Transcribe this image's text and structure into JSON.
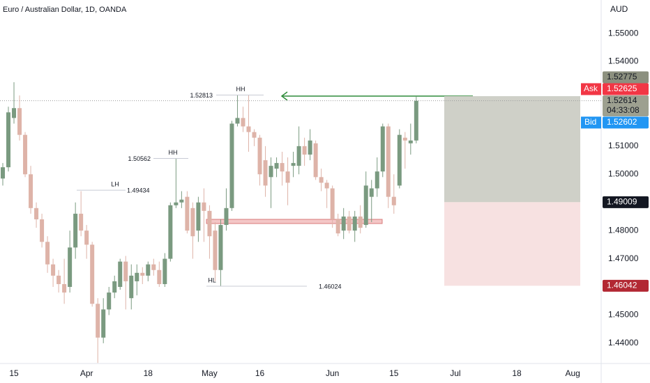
{
  "chart_data": {
    "type": "candlestick",
    "title": "Euro / Australian Dollar, 1D, OANDA",
    "currency": "AUD",
    "up_color": "#7a9a80",
    "down_color": "#deb3a8",
    "open": [
      1.4985,
      1.5025,
      1.52,
      1.5235,
      1.514,
      1.5,
      1.488,
      1.484,
      1.476,
      1.468,
      1.464,
      1.461,
      1.46,
      1.474,
      1.486,
      1.48,
      1.475,
      1.454,
      1.442,
      1.452,
      1.458,
      1.46,
      1.469,
      1.456,
      1.462,
      1.465,
      1.464,
      1.468,
      1.466,
      1.461,
      1.47,
      1.489,
      1.49,
      1.492,
      1.488,
      1.48,
      1.49,
      1.487,
      1.48,
      1.466,
      1.482,
      1.488,
      1.518,
      1.52,
      1.517,
      1.515,
      1.513,
      1.505,
      1.499,
      1.502,
      1.504,
      1.501,
      1.503,
      1.503,
      1.51,
      1.507,
      1.511,
      1.499,
      1.497,
      1.495,
      1.484,
      1.48,
      1.485,
      1.48,
      1.485,
      1.482,
      1.492,
      1.495,
      1.501,
      1.517,
      1.492,
      1.496,
      1.513,
      1.511,
      1.512
    ],
    "high": [
      1.504,
      1.524,
      1.5327,
      1.528,
      1.515,
      1.503,
      1.49,
      1.486,
      1.478,
      1.47,
      1.466,
      1.47,
      1.48,
      1.49,
      1.494,
      1.482,
      1.476,
      1.456,
      1.456,
      1.46,
      1.464,
      1.47,
      1.471,
      1.468,
      1.468,
      1.467,
      1.469,
      1.47,
      1.469,
      1.472,
      1.49,
      1.5056,
      1.494,
      1.494,
      1.49,
      1.492,
      1.495,
      1.489,
      1.483,
      1.484,
      1.495,
      1.519,
      1.5281,
      1.524,
      1.5281,
      1.516,
      1.514,
      1.51,
      1.506,
      1.506,
      1.508,
      1.506,
      1.508,
      1.517,
      1.513,
      1.516,
      1.512,
      1.502,
      1.498,
      1.496,
      1.486,
      1.488,
      1.487,
      1.487,
      1.489,
      1.501,
      1.498,
      1.506,
      1.518,
      1.518,
      1.5,
      1.516,
      1.515,
      1.518,
      1.5277
    ],
    "low": [
      1.496,
      1.501,
      1.518,
      1.512,
      1.499,
      1.486,
      1.481,
      1.474,
      1.465,
      1.46,
      1.458,
      1.454,
      1.458,
      1.47,
      1.478,
      1.47,
      1.453,
      1.433,
      1.44,
      1.45,
      1.456,
      1.459,
      1.452,
      1.452,
      1.457,
      1.461,
      1.462,
      1.464,
      1.46,
      1.46,
      1.469,
      1.488,
      1.488,
      1.479,
      1.47,
      1.476,
      1.476,
      1.47,
      1.462,
      1.4602,
      1.48,
      1.487,
      1.517,
      1.515,
      1.508,
      1.51,
      1.496,
      1.492,
      1.488,
      1.499,
      1.496,
      1.489,
      1.499,
      1.5,
      1.503,
      1.505,
      1.498,
      1.494,
      1.488,
      1.481,
      1.478,
      1.477,
      1.479,
      1.476,
      1.479,
      1.481,
      1.483,
      1.492,
      1.499,
      1.488,
      1.486,
      1.495,
      1.502,
      1.507,
      1.511
    ],
    "close": [
      1.5025,
      1.522,
      1.5235,
      1.514,
      1.5,
      1.488,
      1.484,
      1.476,
      1.468,
      1.464,
      1.461,
      1.458,
      1.474,
      1.486,
      1.48,
      1.475,
      1.454,
      1.442,
      1.452,
      1.458,
      1.462,
      1.469,
      1.462,
      1.464,
      1.465,
      1.464,
      1.468,
      1.466,
      1.461,
      1.47,
      1.489,
      1.49,
      1.491,
      1.48,
      1.478,
      1.49,
      1.487,
      1.478,
      1.466,
      1.482,
      1.488,
      1.518,
      1.52,
      1.517,
      1.515,
      1.513,
      1.5,
      1.496,
      1.503,
      1.504,
      1.501,
      1.497,
      1.504,
      1.51,
      1.507,
      1.512,
      1.499,
      1.497,
      1.495,
      1.484,
      1.479,
      1.485,
      1.48,
      1.485,
      1.481,
      1.496,
      1.495,
      1.501,
      1.517,
      1.492,
      1.489,
      1.514,
      1.512,
      1.512,
      1.5261
    ],
    "xlim": [
      -0.5,
      107.1
    ],
    "xticks": [
      {
        "value": 2,
        "label": "15"
      },
      {
        "value": 15,
        "label": "Apr"
      },
      {
        "value": 26,
        "label": "18"
      },
      {
        "value": 37,
        "label": "May"
      },
      {
        "value": 46,
        "label": "16"
      },
      {
        "value": 59,
        "label": "Jun"
      },
      {
        "value": 70,
        "label": "15"
      },
      {
        "value": 81,
        "label": "Jul"
      },
      {
        "value": 92,
        "label": "18"
      },
      {
        "value": 102,
        "label": "Aug"
      }
    ],
    "ylim": [
      1.4328,
      1.5619
    ],
    "yticks": [
      {
        "value": 1.55,
        "label": "1.55000"
      },
      {
        "value": 1.54,
        "label": "1.54000"
      },
      {
        "value": 1.51,
        "label": "1.51000"
      },
      {
        "value": 1.5,
        "label": "1.50000"
      },
      {
        "value": 1.48,
        "label": "1.48000"
      },
      {
        "value": 1.47,
        "label": "1.47000"
      },
      {
        "value": 1.45,
        "label": "1.45000"
      },
      {
        "value": 1.44,
        "label": "1.44000"
      }
    ],
    "levels": [
      {
        "tag": "HH",
        "price": 1.52813
      },
      {
        "tag": "HH",
        "price": 1.50562
      },
      {
        "tag": "LH",
        "price": 1.49434
      },
      {
        "tag": "HL",
        "price": 1.46024
      }
    ],
    "position": {
      "target": 1.52775,
      "entry": 1.49009,
      "stop": 1.46042
    },
    "ask": {
      "label": "Ask",
      "price": 1.52625
    },
    "last_price": 1.52614,
    "countdown": "04:33:08",
    "bid": {
      "label": "Bid",
      "price": 1.52602
    }
  }
}
